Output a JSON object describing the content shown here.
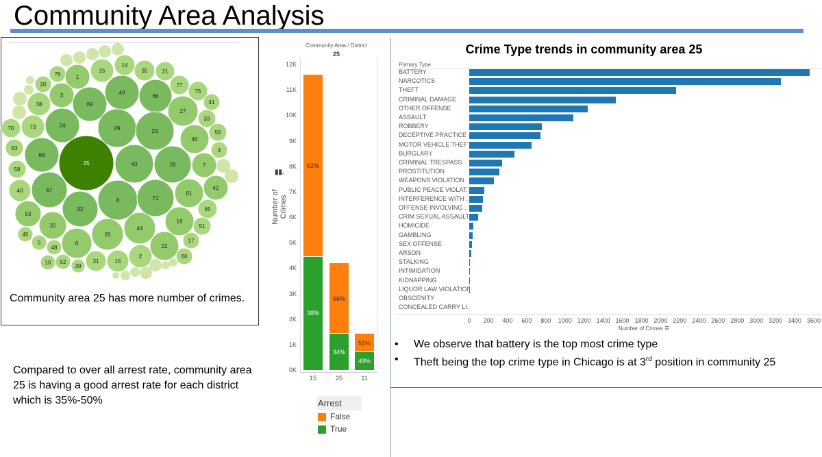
{
  "slide": {
    "title": "Community Area Analysis",
    "bubble_caption": "Community area 25 has more number of crimes.",
    "arrest_note": "Compared to over all arrest rate, community area 25 is having a good arrest rate for each district which is 35%-50%",
    "bullets": [
      {
        "text": "We observe that battery is the top most crime type"
      },
      {
        "pre": "Theft being the top crime type in Chicago is at 3",
        "sup": "rd",
        "post": " position in community 25"
      }
    ]
  },
  "colors": {
    "bubble_dark": "#3e8000",
    "bubble_mid": "#7aba5e",
    "bubble_light": "#a8d77c",
    "bubble_pale": "#cfe6a8",
    "false": "#ff7f0e",
    "true": "#2ca02c",
    "bar": "#1f77b4",
    "title_bar": "#5b8fd0"
  },
  "chart_data": [
    {
      "type": "bubble",
      "labels": [
        "76",
        "1",
        "15",
        "14",
        "35",
        "21",
        "20",
        "3",
        "38",
        "69",
        "49",
        "66",
        "77",
        "75",
        "41",
        "27",
        "33",
        "70",
        "73",
        "24",
        "29",
        "23",
        "56",
        "46",
        "63",
        "68",
        "4",
        "25",
        "58",
        "43",
        "28",
        "7",
        "40",
        "67",
        "8",
        "71",
        "61",
        "42",
        "32",
        "53",
        "65",
        "30",
        "44",
        "19",
        "51",
        "26",
        "45",
        "5",
        "48",
        "6",
        "17",
        "22",
        "2",
        "60",
        "10",
        "52",
        "39",
        "31",
        "16"
      ],
      "highlight": "25"
    },
    {
      "type": "bar",
      "stacked": true,
      "header": "Community Area  /  District",
      "group": "25",
      "ylabel": "Number of Crimes",
      "ylim": [
        0,
        12000
      ],
      "yticks": [
        "0K",
        "1K",
        "2K",
        "3K",
        "4K",
        "5K",
        "6K",
        "7K",
        "8K",
        "9K",
        "10K",
        "11K",
        "12K"
      ],
      "categories": [
        "15",
        "25",
        "11"
      ],
      "legend_title": "Arrest",
      "series": [
        {
          "name": "True",
          "values": [
            4450,
            1420,
            690
          ],
          "labels": [
            "38%",
            "34%",
            "49%"
          ]
        },
        {
          "name": "False",
          "values": [
            7150,
            2780,
            730
          ],
          "labels": [
            "62%",
            "66%",
            "51%"
          ]
        }
      ]
    },
    {
      "type": "bar",
      "orientation": "horizontal",
      "title": "Crime Type trends in community area 25",
      "ycol_label": "Primary Type",
      "xlabel": "Number of Crimes",
      "xlim": [
        0,
        3600
      ],
      "xticks": [
        "0",
        "200",
        "400",
        "600",
        "800",
        "1000",
        "1200",
        "1400",
        "1600",
        "1800",
        "2000",
        "2200",
        "2400",
        "2600",
        "2800",
        "3000",
        "3200",
        "3400",
        "3600"
      ],
      "categories": [
        "BATTERY",
        "NARCOTICS",
        "THEFT",
        "CRIMINAL DAMAGE",
        "OTHER OFFENSE",
        "ASSAULT",
        "ROBBERY",
        "DECEPTIVE PRACTICE",
        "MOTOR VEHICLE THEFT",
        "BURGLARY",
        "CRIMINAL TRESPASS",
        "PROSTITUTION",
        "WEAPONS VIOLATION",
        "PUBLIC PEACE VIOLAT..",
        "INTERFERENCE WITH ..",
        "OFFENSE INVOLVING ..",
        "CRIM SEXUAL ASSAULT",
        "HOMICIDE",
        "GAMBLING",
        "SEX OFFENSE",
        "ARSON",
        "STALKING",
        "INTIMIDATION",
        "KIDNAPPING",
        "LIQUOR LAW VIOLATION",
        "OBSCENITY",
        "CONCEALED CARRY LI.."
      ],
      "values": [
        3557,
        3256,
        2159,
        1533,
        1240,
        1085,
        761,
        746,
        652,
        471,
        345,
        316,
        258,
        161,
        144,
        138,
        92,
        43,
        37,
        29,
        23,
        5,
        5,
        1,
        1,
        0,
        0
      ]
    }
  ]
}
